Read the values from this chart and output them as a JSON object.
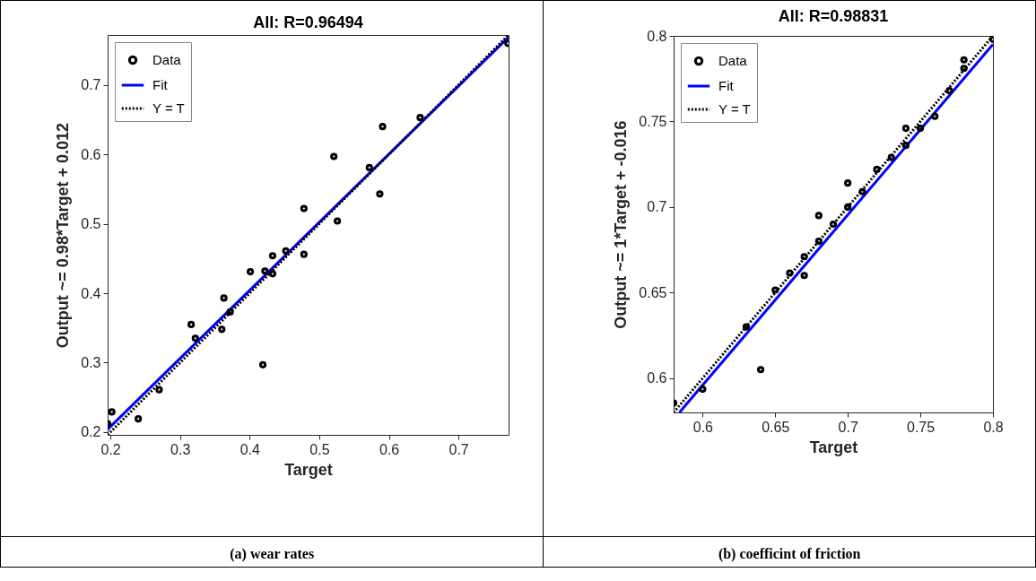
{
  "chart_data": [
    {
      "type": "scatter",
      "title": "All: R=0.96494",
      "xlabel": "Target",
      "ylabel": "Output ~= 0.98*Target + 0.012",
      "annotations": [
        "(a) wear rates"
      ],
      "xlim": [
        0.196,
        0.772
      ],
      "ylim": [
        0.196,
        0.772
      ],
      "xticks": [
        0.2,
        0.3,
        0.4,
        0.5,
        0.6,
        0.7
      ],
      "yticks": [
        0.2,
        0.3,
        0.4,
        0.5,
        0.6,
        0.7
      ],
      "legend": "top left",
      "series": [
        {
          "name": "Data",
          "marker": "circle",
          "color": "#000000",
          "x": [
            0.196,
            0.202,
            0.24,
            0.27,
            0.316,
            0.322,
            0.36,
            0.363,
            0.372,
            0.401,
            0.419,
            0.422,
            0.433,
            0.433,
            0.452,
            0.478,
            0.478,
            0.521,
            0.526,
            0.572,
            0.587,
            0.591,
            0.645,
            0.771
          ],
          "values": [
            0.212,
            0.229,
            0.219,
            0.261,
            0.355,
            0.335,
            0.348,
            0.393,
            0.373,
            0.431,
            0.297,
            0.432,
            0.428,
            0.454,
            0.461,
            0.522,
            0.456,
            0.597,
            0.504,
            0.581,
            0.543,
            0.64,
            0.653,
            0.76
          ]
        },
        {
          "name": "Fit",
          "type": "line",
          "color": "#0000ff",
          "line_style": "solid",
          "x": [
            0.196,
            0.772
          ],
          "values": [
            0.204,
            0.769
          ]
        },
        {
          "name": "Y = T",
          "type": "line",
          "color": "#000000",
          "line_style": "dotted",
          "x": [
            0.196,
            0.772
          ],
          "values": [
            0.196,
            0.772
          ]
        }
      ]
    },
    {
      "type": "scatter",
      "title": "All: R=0.98831",
      "xlabel": "Target",
      "ylabel": "Output ~= 1*Target + -0.016",
      "annotations": [
        "(b) coefficint of friction"
      ],
      "xlim": [
        0.58,
        0.8
      ],
      "ylim": [
        0.58,
        0.8
      ],
      "xticks": [
        0.6,
        0.65,
        0.7,
        0.75,
        0.8
      ],
      "yticks": [
        0.6,
        0.65,
        0.7,
        0.75,
        0.8
      ],
      "legend": "top left",
      "series": [
        {
          "name": "Data",
          "marker": "circle",
          "color": "#000000",
          "x": [
            0.58,
            0.6,
            0.63,
            0.64,
            0.65,
            0.66,
            0.67,
            0.67,
            0.68,
            0.68,
            0.69,
            0.7,
            0.7,
            0.71,
            0.72,
            0.73,
            0.74,
            0.74,
            0.75,
            0.76,
            0.77,
            0.78,
            0.78,
            0.8
          ],
          "values": [
            0.5855,
            0.5936,
            0.63,
            0.605,
            0.6515,
            0.6614,
            0.671,
            0.66,
            0.695,
            0.68,
            0.69,
            0.714,
            0.7,
            0.709,
            0.722,
            0.729,
            0.746,
            0.736,
            0.746,
            0.753,
            0.768,
            0.786,
            0.781,
            0.798
          ]
        },
        {
          "name": "Fit",
          "type": "line",
          "color": "#0000ff",
          "line_style": "solid",
          "x": [
            0.584,
            0.8
          ],
          "values": [
            0.58,
            0.795
          ]
        },
        {
          "name": "Y = T",
          "type": "line",
          "color": "#000000",
          "line_style": "dotted",
          "x": [
            0.58,
            0.8
          ],
          "values": [
            0.58,
            0.8
          ]
        }
      ]
    }
  ]
}
